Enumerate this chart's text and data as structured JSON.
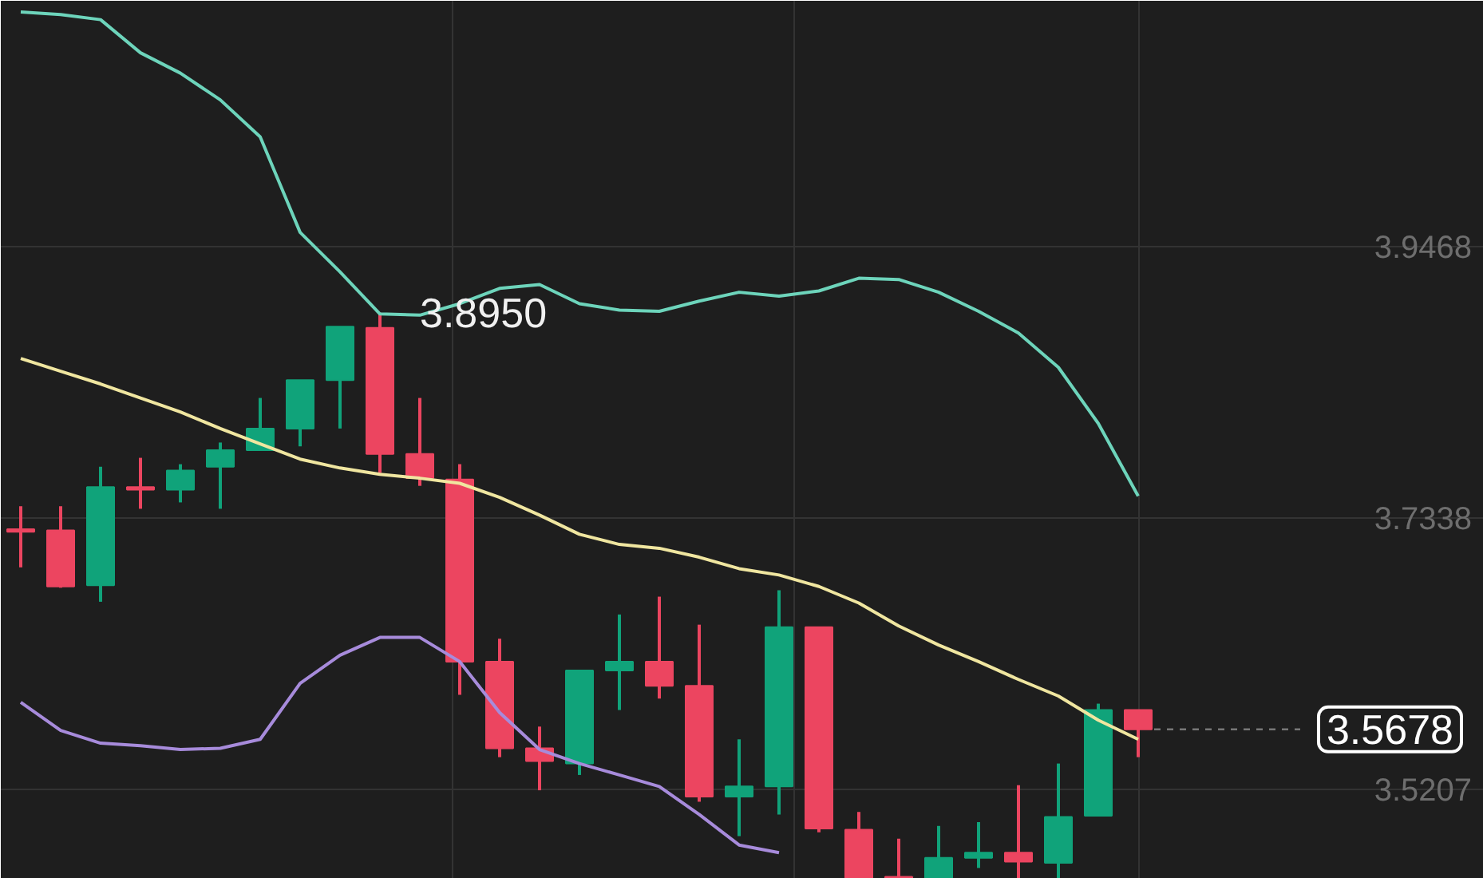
{
  "chart_data": {
    "type": "candlestick",
    "categories": [
      null,
      null,
      null,
      null,
      null,
      null,
      null,
      null,
      null,
      null,
      null,
      null,
      null,
      null,
      null,
      null,
      null,
      null,
      null,
      null,
      null,
      null,
      null,
      null,
      null,
      null,
      null,
      null,
      null
    ],
    "ohlc": [
      [
        3.725,
        3.743,
        3.695,
        3.723
      ],
      [
        3.724,
        3.743,
        3.679,
        3.68
      ],
      [
        3.681,
        3.774,
        3.668,
        3.758
      ],
      [
        3.758,
        3.781,
        3.741,
        3.756
      ],
      [
        3.756,
        3.776,
        3.746,
        3.771
      ],
      [
        3.774,
        3.793,
        3.741,
        3.787
      ],
      [
        3.787,
        3.828,
        3.787,
        3.804
      ],
      [
        3.804,
        3.842,
        3.79,
        3.842
      ],
      [
        3.842,
        3.884,
        3.804,
        3.884
      ],
      [
        3.883,
        3.895,
        3.769,
        3.784
      ],
      [
        3.784,
        3.828,
        3.759,
        3.765
      ],
      [
        3.764,
        3.776,
        3.595,
        3.621
      ],
      [
        3.621,
        3.639,
        3.546,
        3.553
      ],
      [
        3.553,
        3.57,
        3.52,
        3.543
      ],
      [
        3.541,
        3.614,
        3.532,
        3.614
      ],
      [
        3.614,
        3.658,
        3.583,
        3.621
      ],
      [
        3.621,
        3.672,
        3.592,
        3.602
      ],
      [
        3.602,
        3.65,
        3.511,
        3.515
      ],
      [
        3.515,
        3.56,
        3.484,
        3.523
      ],
      [
        3.523,
        3.677,
        3.501,
        3.648
      ],
      [
        3.648,
        3.648,
        3.487,
        3.49
      ],
      [
        3.489,
        3.503,
        3.451,
        3.451
      ],
      [
        3.452,
        3.482,
        3.451,
        3.451
      ],
      [
        3.451,
        3.492,
        3.451,
        3.467
      ],
      [
        3.467,
        3.495,
        3.459,
        3.471
      ],
      [
        3.471,
        3.524,
        3.451,
        3.464
      ],
      [
        3.463,
        3.541,
        3.451,
        3.499
      ],
      [
        3.5,
        3.588,
        3.5,
        3.583
      ],
      [
        3.583,
        3.583,
        3.546,
        3.5678
      ]
    ],
    "colors": [
      "#ec4560",
      "#ec4560",
      "#10a37a",
      "#ec4560",
      "#10a37a",
      "#10a37a",
      "#10a37a",
      "#10a37a",
      "#10a37a",
      "#ec4560",
      "#ec4560",
      "#ec4560",
      "#ec4560",
      "#ec4560",
      "#10a37a",
      "#10a37a",
      "#ec4560",
      "#ec4560",
      "#10a37a",
      "#10a37a",
      "#ec4560",
      "#ec4560",
      "#ec4560",
      "#10a37a",
      "#10a37a",
      "#ec4560",
      "#10a37a",
      "#10a37a",
      "#ec4560"
    ],
    "series": [
      {
        "type": "line",
        "color": "#6dd4bb",
        "values": [
          4.131,
          4.129,
          4.125,
          4.099,
          4.083,
          4.062,
          4.033,
          3.958,
          3.927,
          3.894,
          3.893,
          3.902,
          3.914,
          3.917,
          3.902,
          3.897,
          3.896,
          3.904,
          3.911,
          3.908,
          3.912,
          3.922,
          3.921,
          3.911,
          3.896,
          3.879,
          3.852,
          3.808,
          3.751
        ]
      },
      {
        "type": "line",
        "color": "#f0e6a0",
        "values": [
          3.859,
          3.849,
          3.839,
          3.828,
          3.817,
          3.804,
          3.792,
          3.78,
          3.773,
          3.768,
          3.765,
          3.761,
          3.75,
          3.736,
          3.721,
          3.713,
          3.71,
          3.703,
          3.694,
          3.689,
          3.68,
          3.667,
          3.649,
          3.634,
          3.621,
          3.607,
          3.594,
          3.575,
          3.56
        ]
      },
      {
        "type": "line",
        "color": "#a78bdb",
        "values": [
          3.589,
          3.567,
          3.557,
          3.555,
          3.552,
          3.553,
          3.56,
          3.604,
          3.626,
          3.64,
          3.64,
          3.621,
          3.581,
          3.552,
          3.541,
          3.532,
          3.523,
          3.501,
          3.477,
          3.471,
          null,
          null,
          null,
          null,
          null,
          null,
          null,
          null,
          null
        ]
      }
    ],
    "ylim": [
      3.4505,
      4.1398
    ],
    "yticks": [
      3.9468,
      3.7338,
      3.5207
    ],
    "annotations": [
      "3.8950"
    ],
    "ref_lines": [
      {
        "axis": "y",
        "value": 3.5678,
        "label": "3.5678",
        "line_style": "dashed"
      }
    ],
    "grid": true,
    "tick_labels": "y"
  }
}
